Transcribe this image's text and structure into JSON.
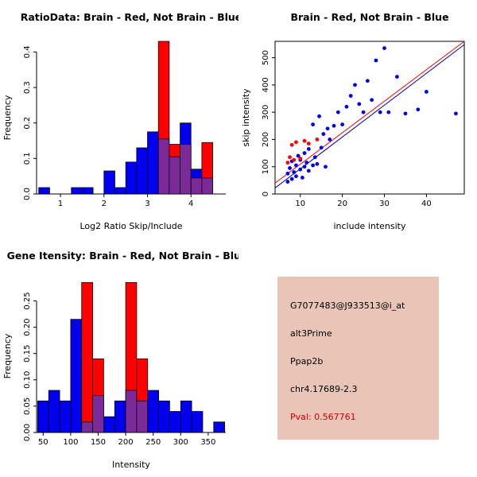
{
  "chart_data": [
    {
      "type": "histogram",
      "title": "RatioData: Brain - Red, Not Brain - Blue",
      "xlabel": "Log2 Ratio Skip/Include",
      "ylabel": "Frequency",
      "bin_start": 0.5,
      "bin_width": 0.25,
      "xlim": [
        0.45,
        4.8
      ],
      "ylim": [
        0,
        0.43
      ],
      "xticks": [
        1,
        2,
        3,
        4
      ],
      "yticks": [
        0.0,
        0.1,
        0.2,
        0.3,
        0.4
      ],
      "ytick_labels": [
        "0.0",
        "0.1",
        "0.2",
        "0.3",
        "0.4"
      ],
      "grid": false,
      "overlap_color": "#7c2a99",
      "series": [
        {
          "name": "Not Brain",
          "color": "#0000ee",
          "values": [
            0.018,
            0,
            0,
            0.018,
            0.018,
            0,
            0.065,
            0.018,
            0.09,
            0.13,
            0.175,
            0.155,
            0.105,
            0.2,
            0.07,
            0.045,
            0
          ]
        },
        {
          "name": "Brain",
          "color": "#ff0000",
          "values": [
            0,
            0,
            0,
            0,
            0,
            0,
            0,
            0,
            0,
            0,
            0,
            0.43,
            0.14,
            0.14,
            0.045,
            0.145,
            0
          ]
        }
      ]
    },
    {
      "type": "scatter",
      "title": "Brain - Red, Not Brain - Blue",
      "xlabel": "include intensity",
      "ylabel": "skip intensity",
      "xlim": [
        4,
        49
      ],
      "ylim": [
        0,
        560
      ],
      "xticks": [
        10,
        20,
        30,
        40
      ],
      "yticks": [
        0,
        100,
        200,
        300,
        400,
        500
      ],
      "ytick_labels": [
        "0",
        "100",
        "200",
        "300",
        "400",
        "500"
      ],
      "grid": false,
      "series": [
        {
          "name": "Not Brain",
          "color": "#0000ee",
          "points": [
            [
              7,
              45
            ],
            [
              7,
              75
            ],
            [
              7.5,
              95
            ],
            [
              8,
              55
            ],
            [
              8,
              120
            ],
            [
              8.5,
              80
            ],
            [
              9,
              65
            ],
            [
              9,
              105
            ],
            [
              9.5,
              140
            ],
            [
              10,
              90
            ],
            [
              10,
              125
            ],
            [
              10.5,
              60
            ],
            [
              11,
              100
            ],
            [
              11,
              150
            ],
            [
              11.5,
              115
            ],
            [
              12,
              85
            ],
            [
              12,
              165
            ],
            [
              13,
              105
            ],
            [
              13,
              255
            ],
            [
              13.5,
              135
            ],
            [
              14,
              110
            ],
            [
              14.5,
              285
            ],
            [
              15,
              170
            ],
            [
              15.5,
              220
            ],
            [
              16,
              100
            ],
            [
              16.5,
              240
            ],
            [
              17,
              200
            ],
            [
              18,
              250
            ],
            [
              19,
              300
            ],
            [
              20,
              255
            ],
            [
              21,
              320
            ],
            [
              22,
              360
            ],
            [
              23,
              400
            ],
            [
              24,
              330
            ],
            [
              25,
              300
            ],
            [
              26,
              415
            ],
            [
              27,
              345
            ],
            [
              28,
              490
            ],
            [
              29,
              300
            ],
            [
              30,
              535
            ],
            [
              31,
              300
            ],
            [
              33,
              430
            ],
            [
              35,
              295
            ],
            [
              38,
              310
            ],
            [
              40,
              375
            ],
            [
              47,
              295
            ]
          ]
        },
        {
          "name": "Brain",
          "color": "#ff0000",
          "points": [
            [
              7,
              115
            ],
            [
              7.5,
              135
            ],
            [
              8,
              180
            ],
            [
              8.5,
              125
            ],
            [
              9,
              190
            ],
            [
              10,
              130
            ],
            [
              11,
              195
            ],
            [
              12,
              185
            ],
            [
              14,
              200
            ]
          ]
        }
      ],
      "lines": [
        {
          "name": "brain-fit",
          "color": "#ff0000",
          "x1": 4,
          "y1": 40,
          "x2": 49,
          "y2": 560
        },
        {
          "name": "not-brain-fit",
          "color": "#0000bb",
          "x1": 4,
          "y1": 22,
          "x2": 49,
          "y2": 548
        }
      ]
    },
    {
      "type": "histogram",
      "title": "Gene Itensity: Brain - Red, Not Brain - Blue",
      "xlabel": "Intensity",
      "ylabel": "Frequency",
      "bin_start": 40,
      "bin_width": 20,
      "xlim": [
        38,
        382
      ],
      "ylim": [
        0,
        0.29
      ],
      "xticks": [
        50,
        100,
        150,
        200,
        250,
        300,
        350
      ],
      "yticks": [
        0.0,
        0.05,
        0.1,
        0.15,
        0.2,
        0.25
      ],
      "ytick_labels": [
        "0.00",
        "0.05",
        "0.10",
        "0.15",
        "0.20",
        "0.25"
      ],
      "grid": false,
      "overlap_color": "#7c2a99",
      "series": [
        {
          "name": "Not Brain",
          "color": "#0000ee",
          "values": [
            0.06,
            0.08,
            0.06,
            0.215,
            0.02,
            0.07,
            0.03,
            0.06,
            0.08,
            0.06,
            0.08,
            0.06,
            0.04,
            0.06,
            0.04,
            0,
            0.02
          ]
        },
        {
          "name": "Brain",
          "color": "#ff0000",
          "values": [
            0,
            0,
            0,
            0,
            0.285,
            0.14,
            0,
            0,
            0.285,
            0.14,
            0,
            0,
            0,
            0,
            0,
            0,
            0
          ]
        }
      ]
    }
  ],
  "info": {
    "bg_color": "#e8c5b7",
    "pval_color": "#cd0000",
    "fields": [
      "G7077483@J933513@i_at",
      "alt3Prime",
      "Ppap2b",
      "chr4.17689-2.3"
    ],
    "pval": "Pval: 0.567761"
  }
}
